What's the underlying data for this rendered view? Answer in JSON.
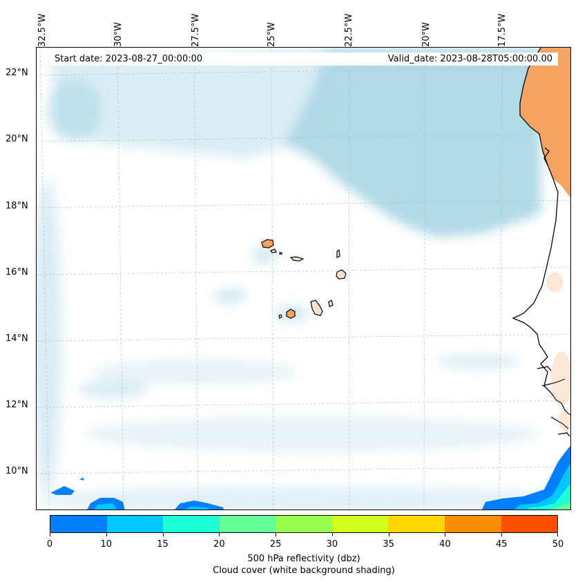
{
  "header": {
    "start_date": "Start date: 2023-08-27_00:00:00",
    "valid_date": "Valid_date: 2023-08-28T05:00:00.00"
  },
  "axes": {
    "lon_labels": [
      "32.5°W",
      "30°W",
      "27.5°W",
      "25°W",
      "22.5°W",
      "20°W",
      "17.5°W"
    ],
    "lat_labels": [
      "22°N",
      "20°N",
      "18°N",
      "16°N",
      "14°N",
      "12°N",
      "10°N"
    ]
  },
  "colorbar": {
    "ticks": [
      "0",
      "10",
      "15",
      "20",
      "25",
      "30",
      "35",
      "40",
      "45",
      "50"
    ],
    "colors": [
      "#0080ff",
      "#00c8ff",
      "#1effd8",
      "#64ff96",
      "#96ff50",
      "#d2ff1e",
      "#ffd700",
      "#ff8c00",
      "#ff5000"
    ],
    "label": "500 hPa reflectivity (dbz)",
    "sublabel": "Cloud cover (white background shading)"
  },
  "map": {
    "land_color": "#f4a460",
    "cloud_color": "#add8e6",
    "features": {
      "coast": "West African coastline",
      "islands": "Cape Verde islands"
    }
  }
}
